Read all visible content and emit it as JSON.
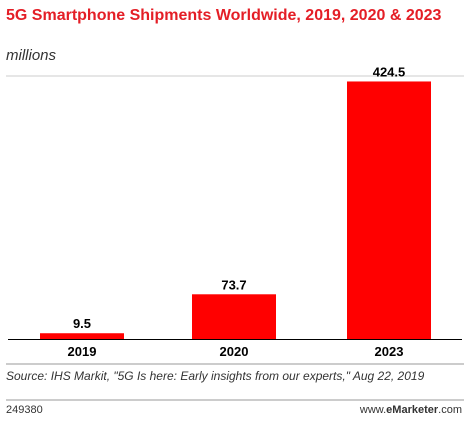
{
  "chart_data": {
    "type": "bar",
    "title": "5G Smartphone Shipments Worldwide, 2019, 2020 & 2023",
    "subtitle": "millions",
    "categories": [
      "2019",
      "2020",
      "2023"
    ],
    "values": [
      9.5,
      73.7,
      424.5
    ],
    "value_labels": [
      "9.5",
      "73.7",
      "424.5"
    ],
    "ylim": [
      0,
      450
    ],
    "grid": false,
    "bar_color": "#ff0000"
  },
  "source": "Source: IHS Markit, \"5G Is here: Early insights from our experts,\" Aug 22, 2019",
  "footer": {
    "id": "249380",
    "brand_prefix": "www.",
    "brand_bold": "eMarketer",
    "brand_suffix": ".com"
  }
}
